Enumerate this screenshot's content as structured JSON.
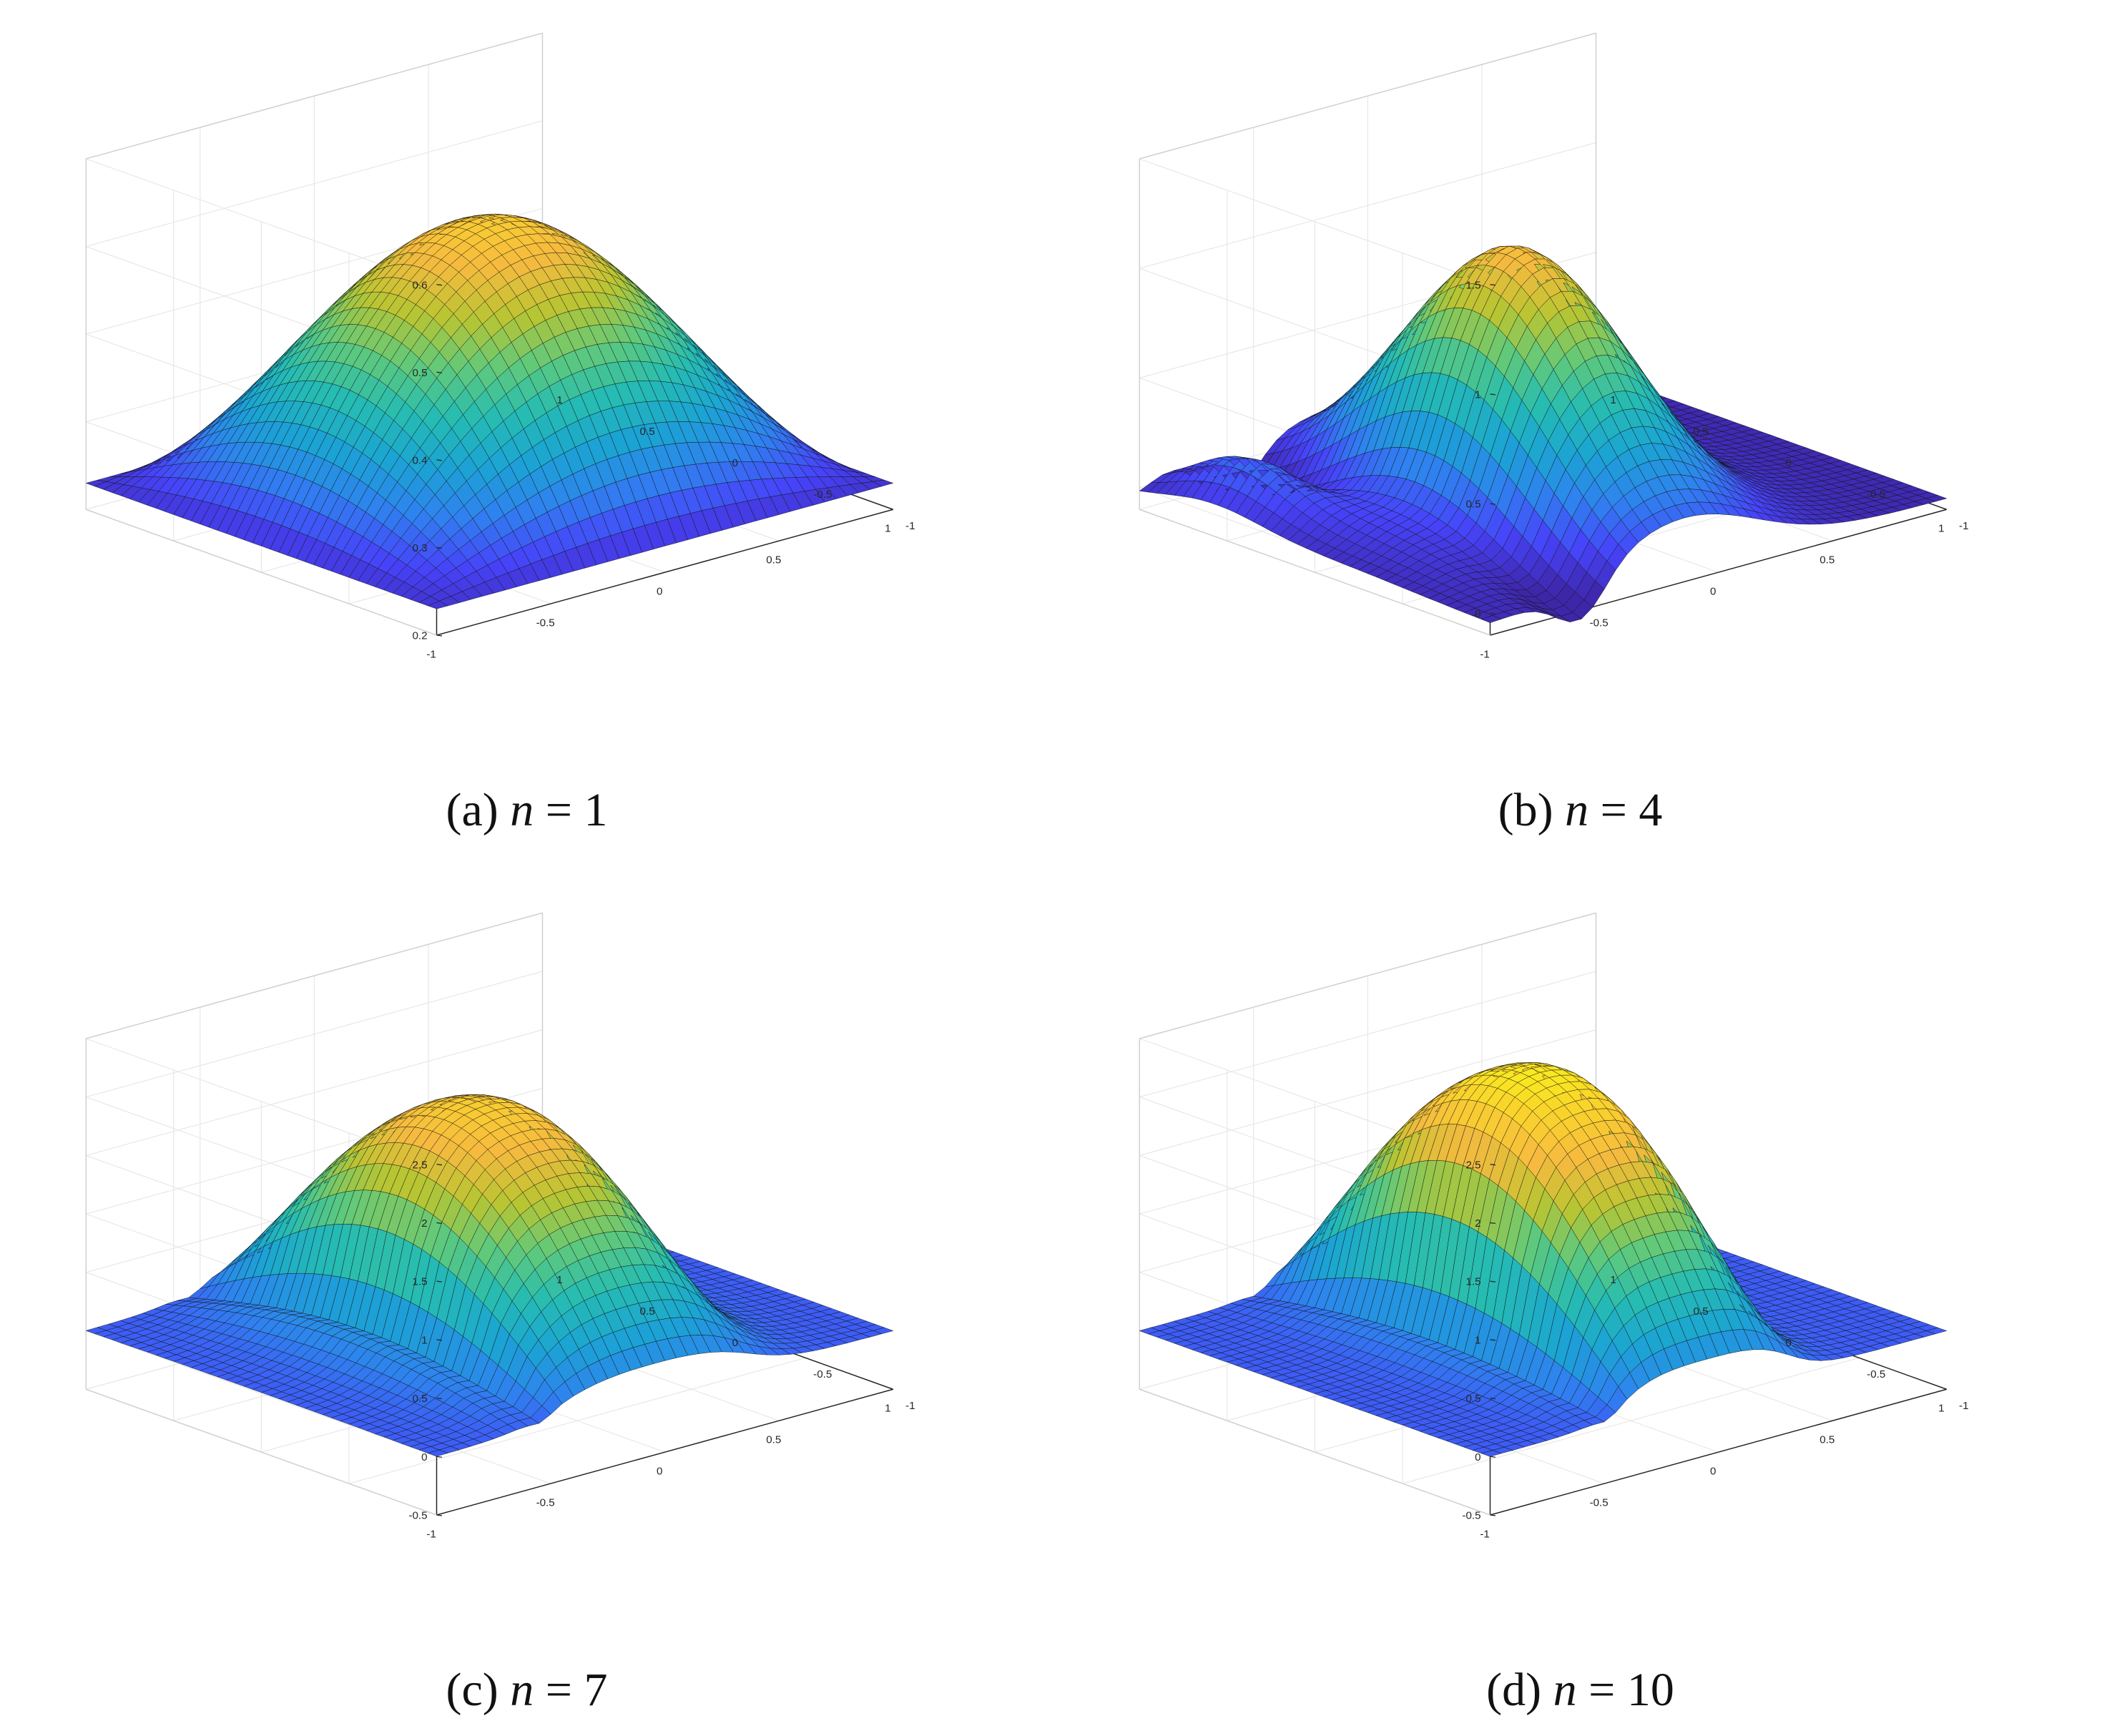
{
  "chart_data": [
    {
      "type": "surface",
      "caption": {
        "label": "(a)",
        "variable": "n",
        "op": "=",
        "value": "1"
      },
      "n": 1,
      "zlim": [
        0.2,
        0.6
      ],
      "zticks": [
        "0.2",
        "0.3",
        "0.4",
        "0.5",
        "0.6"
      ],
      "xticks": [
        "-1",
        "-0.5",
        "0",
        "0.5",
        "1"
      ],
      "yticks": [
        "-1",
        "-0.5",
        "0",
        "0.5",
        "1"
      ],
      "xlim": [
        -1,
        1
      ],
      "ylim": [
        -1,
        1
      ],
      "grid": true
    },
    {
      "type": "surface",
      "caption": {
        "label": "(b)",
        "variable": "n",
        "op": "=",
        "value": "4"
      },
      "n": 4,
      "zlim": [
        -0.1,
        1.5
      ],
      "zticks": [
        "0",
        "0.5",
        "1",
        "1.5"
      ],
      "xticks": [
        "-1",
        "-0.5",
        "0",
        "0.5",
        "1"
      ],
      "yticks": [
        "-1",
        "-0.5",
        "0",
        "0.5",
        "1"
      ],
      "xlim": [
        -1,
        1
      ],
      "ylim": [
        -1,
        1
      ],
      "grid": true
    },
    {
      "type": "surface",
      "caption": {
        "label": "(c)",
        "variable": "n",
        "op": "=",
        "value": "7"
      },
      "n": 7,
      "zlim": [
        -0.5,
        2.5
      ],
      "zticks": [
        "-0.5",
        "0",
        "0.5",
        "1",
        "1.5",
        "2",
        "2.5"
      ],
      "xticks": [
        "-1",
        "-0.5",
        "0",
        "0.5",
        "1"
      ],
      "yticks": [
        "-1",
        "-0.5",
        "0",
        "0.5",
        "1"
      ],
      "xlim": [
        -1,
        1
      ],
      "ylim": [
        -1,
        1
      ],
      "grid": true
    },
    {
      "type": "surface",
      "caption": {
        "label": "(d)",
        "variable": "n",
        "op": "=",
        "value": "10"
      },
      "n": 10,
      "zlim": [
        -0.5,
        2.5
      ],
      "zticks": [
        "-0.5",
        "0",
        "0.5",
        "1",
        "1.5",
        "2",
        "2.5"
      ],
      "xticks": [
        "-1",
        "-0.5",
        "0",
        "0.5",
        "1"
      ],
      "yticks": [
        "-1",
        "-0.5",
        "0",
        "0.5",
        "1"
      ],
      "xlim": [
        -1,
        1
      ],
      "ylim": [
        -1,
        1
      ],
      "grid": true
    }
  ],
  "colormap": [
    "#3e26a8",
    "#4743f9",
    "#2f82ef",
    "#1ba4d3",
    "#26bcb2",
    "#5fc97c",
    "#b8c532",
    "#f6ba3f",
    "#f9d52b",
    "#f9fb15"
  ]
}
